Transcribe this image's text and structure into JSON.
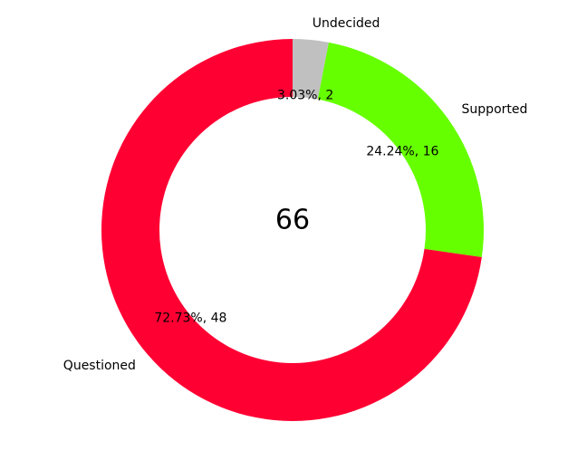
{
  "chart_data": {
    "type": "pie",
    "variant": "donut",
    "center_label": "66",
    "total": 66,
    "start_angle_deg": 90,
    "direction": "clockwise",
    "slices": [
      {
        "label": "Undecided",
        "value": 2,
        "percent_label": "3.03%, 2",
        "color": "#c0c0c0"
      },
      {
        "label": "Supported",
        "value": 16,
        "percent_label": "24.24%, 16",
        "color": "#66ff00"
      },
      {
        "label": "Questioned",
        "value": 48,
        "percent_label": "72.73%, 48",
        "color": "#ff0033"
      }
    ]
  }
}
